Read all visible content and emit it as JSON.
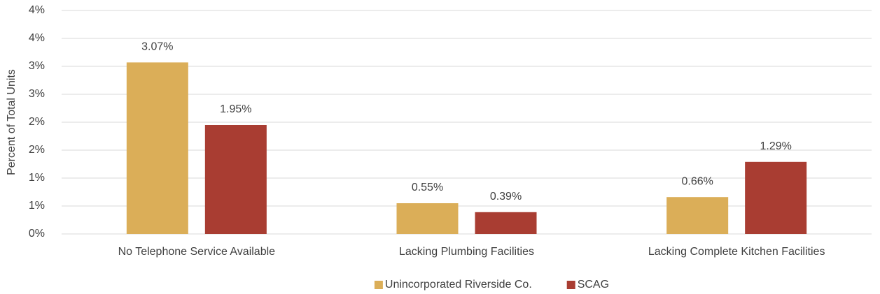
{
  "chart_data": {
    "type": "bar",
    "y_label": "Percent of Total Units",
    "categories": [
      "No Telephone Service Available",
      "Lacking Plumbing Facilities",
      "Lacking Complete Kitchen Facilities"
    ],
    "series": [
      {
        "name": "Unincorporated Riverside Co.",
        "color": "#dbae58",
        "values": [
          3.07,
          0.55,
          0.66
        ],
        "value_labels": [
          "3.07%",
          "0.55%",
          "0.66%"
        ]
      },
      {
        "name": "SCAG",
        "color": "#a93d32",
        "values": [
          1.95,
          0.39,
          1.29
        ],
        "value_labels": [
          "1.95%",
          "0.39%",
          "1.29%"
        ]
      }
    ],
    "ylim": [
      0,
      4
    ],
    "yticks": [
      {
        "value": 0,
        "label": "0%"
      },
      {
        "value": 0.5,
        "label": "1%"
      },
      {
        "value": 1,
        "label": "1%"
      },
      {
        "value": 1.5,
        "label": "2%"
      },
      {
        "value": 2,
        "label": "2%"
      },
      {
        "value": 2.5,
        "label": "3%"
      },
      {
        "value": 3,
        "label": "3%"
      },
      {
        "value": 3.5,
        "label": "4%"
      },
      {
        "value": 4,
        "label": "4%"
      }
    ],
    "grid": true,
    "legend": "bottom"
  }
}
